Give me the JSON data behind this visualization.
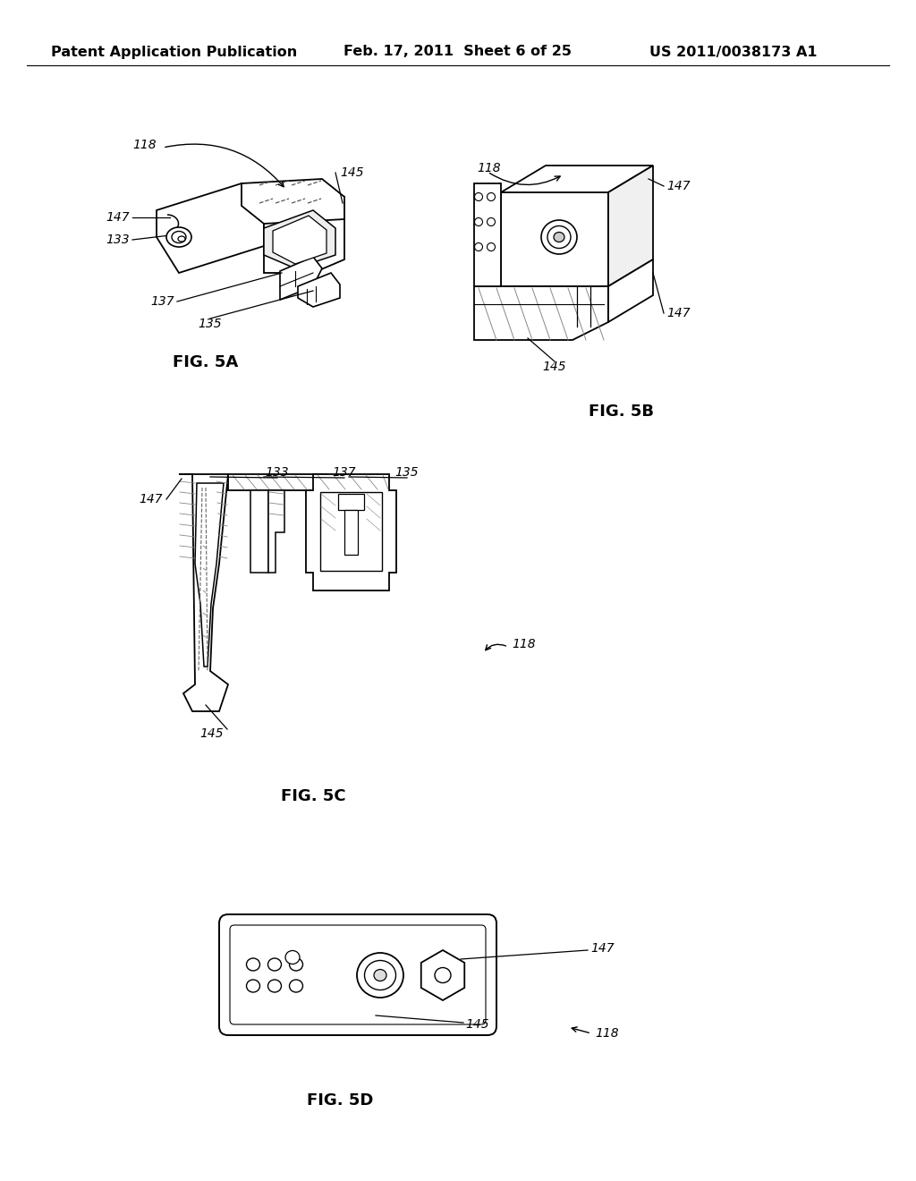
{
  "background_color": "#ffffff",
  "header_left": "Patent Application Publication",
  "header_mid": "Feb. 17, 2011  Sheet 6 of 25",
  "header_right": "US 2011/0038173 A1",
  "fig5a_label": "FIG. 5A",
  "fig5b_label": "FIG. 5B",
  "fig5c_label": "FIG. 5C",
  "fig5d_label": "FIG. 5D",
  "lc": "#000000",
  "lw": 1.4,
  "ref_118": "118",
  "ref_133": "133",
  "ref_135": "135",
  "ref_137": "137",
  "ref_145": "145",
  "ref_147": "147"
}
